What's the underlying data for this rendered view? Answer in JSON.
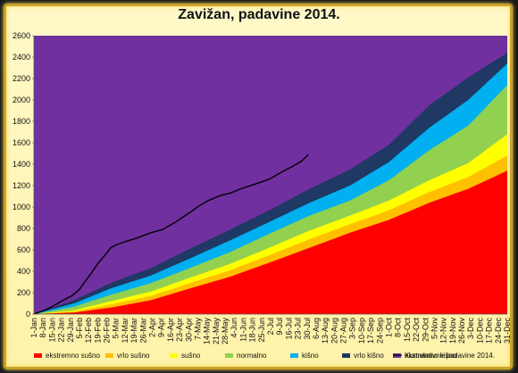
{
  "chart_data": {
    "type": "area",
    "title": "Zavižan, padavine 2014.",
    "ylim": [
      0,
      2600
    ],
    "yticks": [
      0,
      200,
      400,
      600,
      800,
      1000,
      1200,
      1400,
      1600,
      1800,
      2000,
      2200,
      2400,
      2600
    ],
    "x_tick_labels": [
      "1-Jan",
      "8-Jan",
      "15-Jan",
      "22-Jan",
      "29-Jan",
      "5-Feb",
      "12-Feb",
      "19-Feb",
      "26-Feb",
      "5-Mar",
      "12-Mar",
      "19-Mar",
      "26-Mar",
      "2-Apr",
      "9-Apr",
      "16-Apr",
      "23-Apr",
      "30-Apr",
      "7-May",
      "14-May",
      "21-May",
      "28-May",
      "4-Jun",
      "11-Jun",
      "18-Jun",
      "25-Jun",
      "2-Jul",
      "9-Jul",
      "16-Jul",
      "23-Jul",
      "30-Jul",
      "6-Aug",
      "13-Aug",
      "20-Aug",
      "27-Aug",
      "3-Sep",
      "10-Sep",
      "17-Sep",
      "24-Sep",
      "1-Oct",
      "8-Oct",
      "15-Oct",
      "22-Oct",
      "29-Oct",
      "5-Nov",
      "12-Nov",
      "19-Nov",
      "26-Nov",
      "3-Dec",
      "10-Dec",
      "17-Dec",
      "24-Dec",
      "31-Dec"
    ],
    "x_days": [
      1,
      32,
      60,
      91,
      121,
      152,
      182,
      213,
      244,
      274,
      305,
      335,
      365
    ],
    "bands": [
      {
        "name": "ekstremno sušno",
        "color": "#ff0000",
        "values": [
          0,
          15,
          60,
          130,
          240,
          350,
          480,
          620,
          760,
          880,
          1040,
          1170,
          1340
        ]
      },
      {
        "name": "vrlo sušno",
        "color": "#ffc000",
        "values": [
          0,
          25,
          90,
          170,
          290,
          410,
          550,
          700,
          840,
          970,
          1140,
          1280,
          1480
        ]
      },
      {
        "name": "sušno",
        "color": "#ffff00",
        "values": [
          0,
          35,
          120,
          210,
          340,
          470,
          620,
          780,
          920,
          1060,
          1250,
          1410,
          1680
        ]
      },
      {
        "name": "normalno",
        "color": "#92d050",
        "values": [
          0,
          70,
          180,
          290,
          430,
          580,
          750,
          920,
          1060,
          1250,
          1530,
          1760,
          2140
        ]
      },
      {
        "name": "kišno",
        "color": "#00b0f0",
        "values": [
          0,
          100,
          240,
          360,
          520,
          690,
          860,
          1040,
          1200,
          1420,
          1740,
          2000,
          2340
        ]
      },
      {
        "name": "vrlo kišno",
        "color": "#1f3864",
        "values": [
          0,
          130,
          290,
          430,
          610,
          790,
          970,
          1170,
          1350,
          1580,
          1950,
          2210,
          2440
        ]
      },
      {
        "name": "ekstremno kišno",
        "color": "#7030a0",
        "values": [
          2600,
          2600,
          2600,
          2600,
          2600,
          2600,
          2600,
          2600,
          2600,
          2600,
          2600,
          2600,
          2600
        ]
      }
    ],
    "cumulative": {
      "name": "Kumulativne padavine 2014.",
      "color": "#000000",
      "x_days": [
        1,
        10,
        15,
        22,
        30,
        36,
        40,
        45,
        50,
        57,
        60,
        65,
        72,
        80,
        91,
        100,
        110,
        121,
        128,
        135,
        145,
        152,
        160,
        170,
        182,
        192,
        200,
        207,
        212
      ],
      "values": [
        0,
        40,
        70,
        120,
        170,
        230,
        300,
        380,
        470,
        570,
        620,
        650,
        680,
        710,
        760,
        790,
        860,
        950,
        1010,
        1060,
        1110,
        1130,
        1170,
        1210,
        1260,
        1330,
        1380,
        1430,
        1490
      ]
    },
    "legend_position": "bottom"
  }
}
